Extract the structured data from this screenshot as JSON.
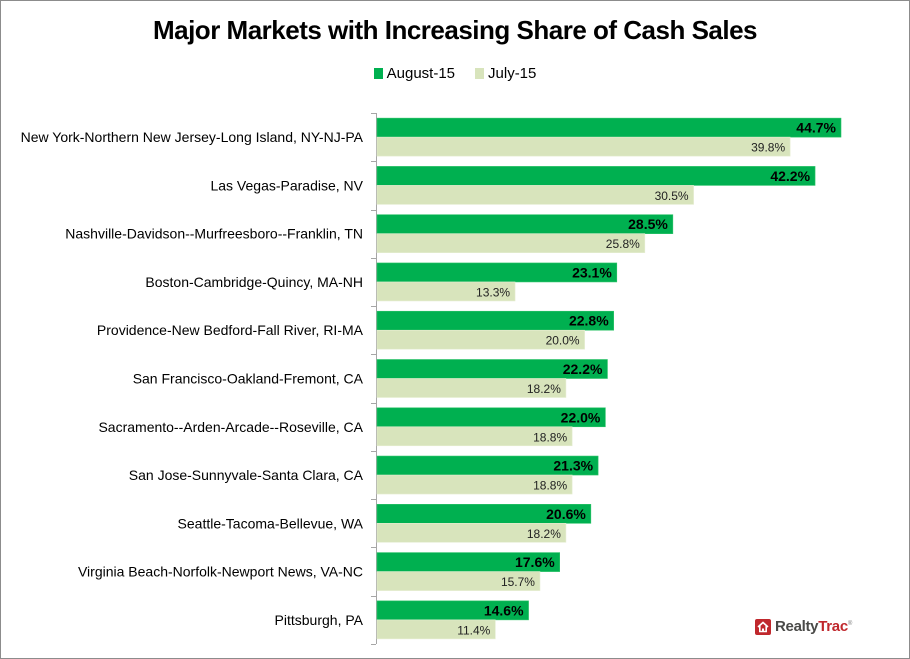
{
  "chart_data": {
    "type": "bar",
    "orientation": "horizontal",
    "title": "Major Markets with Increasing Share of Cash Sales",
    "xlabel": "",
    "ylabel": "",
    "xlim": [
      0,
      48
    ],
    "grid": false,
    "legend_position": "top",
    "categories": [
      "New York-Northern New Jersey-Long Island, NY-NJ-PA",
      "Las Vegas-Paradise, NV",
      "Nashville-Davidson--Murfreesboro--Franklin, TN",
      "Boston-Cambridge-Quincy, MA-NH",
      "Providence-New Bedford-Fall River, RI-MA",
      "San Francisco-Oakland-Fremont, CA",
      "Sacramento--Arden-Arcade--Roseville, CA",
      "San Jose-Sunnyvale-Santa Clara, CA",
      "Seattle-Tacoma-Bellevue, WA",
      "Virginia Beach-Norfolk-Newport News, VA-NC",
      "Pittsburgh, PA"
    ],
    "series": [
      {
        "name": "August-15",
        "color": "#00b050",
        "values": [
          44.7,
          42.2,
          28.5,
          23.1,
          22.8,
          22.2,
          22.0,
          21.3,
          20.6,
          17.6,
          14.6
        ],
        "labels": [
          "44.7%",
          "42.2%",
          "28.5%",
          "23.1%",
          "22.8%",
          "22.2%",
          "22.0%",
          "21.3%",
          "20.6%",
          "17.6%",
          "14.6%"
        ]
      },
      {
        "name": "July-15",
        "color": "#d8e4bc",
        "values": [
          39.8,
          30.5,
          25.8,
          13.3,
          20.0,
          18.2,
          18.8,
          18.8,
          18.2,
          15.7,
          11.4
        ],
        "labels": [
          "39.8%",
          "30.5%",
          "25.8%",
          "13.3%",
          "20.0%",
          "18.2%",
          "18.8%",
          "18.8%",
          "18.2%",
          "15.7%",
          "11.4%"
        ]
      }
    ]
  },
  "logo": {
    "text_realty": "Realty",
    "text_trac": "Trac",
    "registered": "®"
  }
}
